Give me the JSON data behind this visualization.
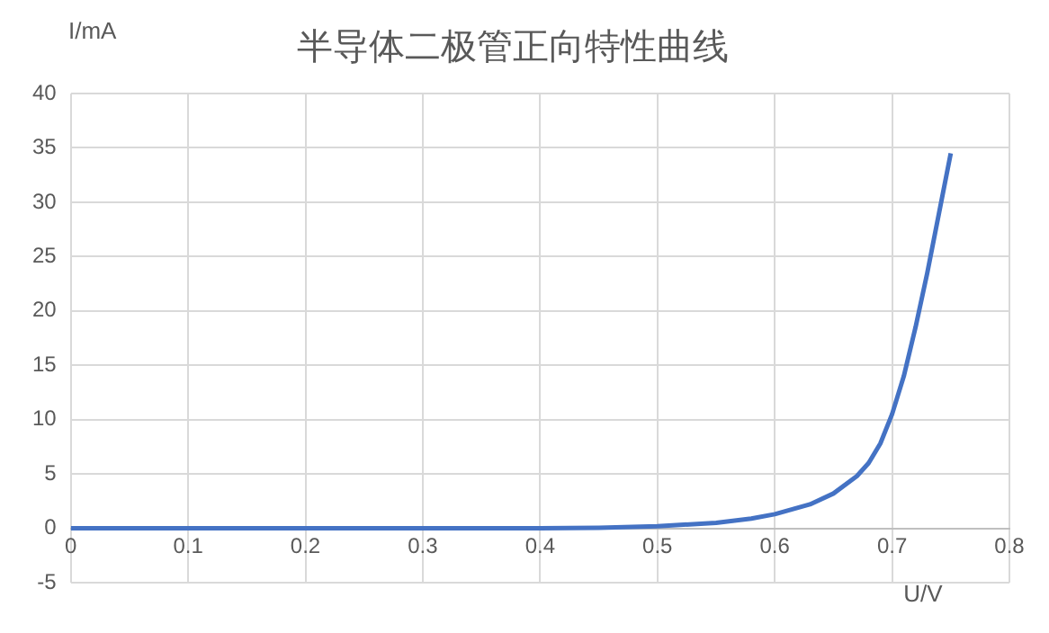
{
  "chart_data": {
    "type": "line",
    "title": "半导体二极管正向特性曲线",
    "xlabel": "U/V",
    "ylabel": "I/mA",
    "x": [
      0,
      0.1,
      0.2,
      0.3,
      0.4,
      0.45,
      0.5,
      0.55,
      0.58,
      0.6,
      0.63,
      0.65,
      0.67,
      0.68,
      0.69,
      0.7,
      0.71,
      0.72,
      0.73,
      0.74,
      0.75
    ],
    "series": [
      {
        "color": "#4472c4",
        "values": [
          0,
          0,
          0,
          0,
          0,
          0.05,
          0.2,
          0.5,
          0.9,
          1.3,
          2.2,
          3.2,
          4.8,
          6,
          7.8,
          10.5,
          14,
          18.5,
          23.5,
          29,
          34.5
        ]
      }
    ],
    "xlim": [
      0,
      0.8
    ],
    "ylim": [
      -5,
      40
    ],
    "xticks": [
      0,
      0.1,
      0.2,
      0.3,
      0.4,
      0.5,
      0.6,
      0.7,
      0.8
    ],
    "yticks": [
      -5,
      0,
      5,
      10,
      15,
      20,
      25,
      30,
      35,
      40
    ],
    "grid": true
  }
}
